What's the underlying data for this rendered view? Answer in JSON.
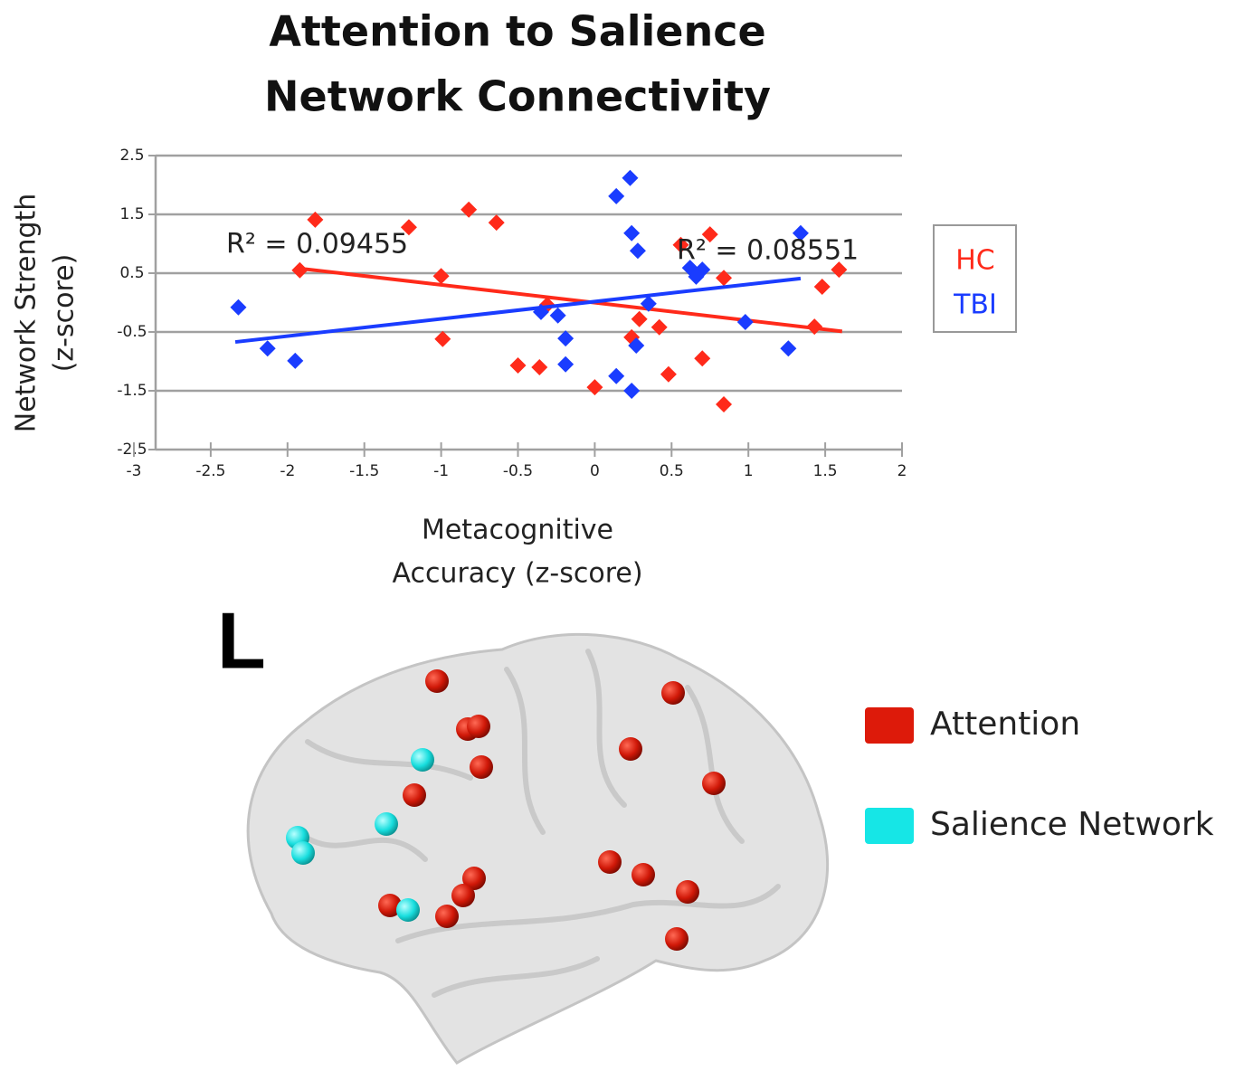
{
  "chart_data": {
    "type": "scatter",
    "title": [
      "Attention to Salience",
      "Network Connectivity"
    ],
    "xlabel": [
      "Metacognitive",
      "Accuracy (z-score)"
    ],
    "ylabel": [
      "Network Strength",
      "(z-score)"
    ],
    "xlim": [
      -3,
      2
    ],
    "xticks": [
      -3,
      -2.5,
      -2,
      -1.5,
      -1,
      -0.5,
      0,
      0.5,
      1,
      1.5,
      2
    ],
    "ylim": [
      -2.5,
      2.5
    ],
    "yticks": [
      -2.5,
      -1.5,
      -0.5,
      0.5,
      1.5,
      2.5
    ],
    "grid": true,
    "legend": "right",
    "series": [
      {
        "name": "HC",
        "color": "#ff2a1a",
        "x": [
          -1.82,
          -1.92,
          -1.21,
          -0.82,
          -0.64,
          -1.0,
          -0.99,
          -0.5,
          -0.36,
          -0.31,
          0,
          0.24,
          0.29,
          0.42,
          0.48,
          0.56,
          0.75,
          0.7,
          0.84,
          0.84,
          1.43,
          1.48,
          1.59
        ],
        "values": [
          1.41,
          0.55,
          1.28,
          1.58,
          1.36,
          0.45,
          -0.62,
          -1.07,
          -1.1,
          -0.04,
          -1.44,
          -0.59,
          -0.28,
          -0.42,
          -1.22,
          0.98,
          1.16,
          -0.95,
          0.42,
          -1.73,
          -0.41,
          0.27,
          0.56
        ],
        "trendline": {
          "x": [
            -1.92,
            1.61
          ],
          "values": [
            0.58,
            -0.49
          ]
        },
        "annotation": "R² = 0.09455"
      },
      {
        "name": "TBI",
        "color": "#1a3cff",
        "x": [
          -2.32,
          -2.13,
          -1.95,
          -0.35,
          -0.24,
          -0.19,
          -0.19,
          0.14,
          0.23,
          0.24,
          0.28,
          0.14,
          0.24,
          0.27,
          0.35,
          0.62,
          0.66,
          0.7,
          0.98,
          1.26,
          1.34
        ],
        "values": [
          -0.08,
          -0.78,
          -0.99,
          -0.16,
          -0.22,
          -0.61,
          -1.05,
          1.81,
          2.12,
          1.18,
          0.88,
          -1.25,
          -1.5,
          -0.73,
          -0.02,
          0.59,
          0.44,
          0.56,
          -0.33,
          -0.78,
          1.18
        ],
        "trendline": {
          "x": [
            -2.34,
            1.34
          ],
          "values": [
            -0.67,
            0.41
          ]
        },
        "annotation": "R² = 0.08551"
      }
    ]
  },
  "brain_figure": {
    "side_label": "L",
    "legend": [
      {
        "name": "Attention",
        "color": "#dd1a0a"
      },
      {
        "name": "Salience Network",
        "color": "#16e6e6"
      }
    ]
  }
}
